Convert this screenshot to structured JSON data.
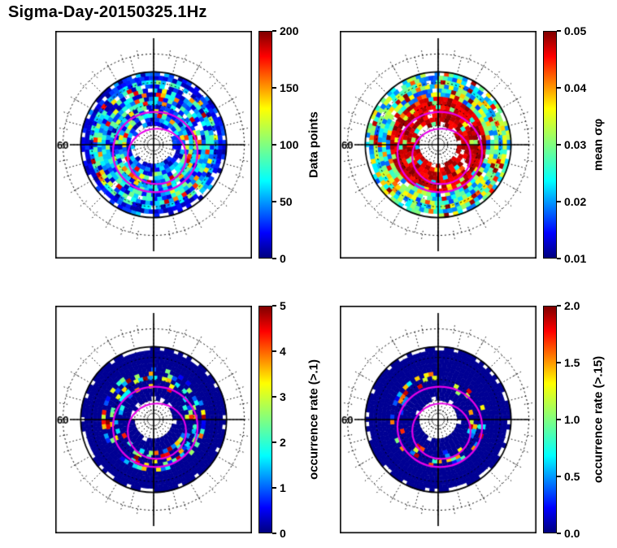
{
  "title": "Sigma-Day-20150325.1Hz",
  "chart_data": {
    "type": "heatmap",
    "subtype": "polar-dial-2x2",
    "colormap": "jet",
    "oval_color": "#e800e8",
    "grid": {
      "latitude_circle_label": "60",
      "solid_circle": "magnetic latitude 60 circle with center cross lines",
      "dotted_grid": "dotted latitude circles and 15-degree MLT spokes with short outer tick marks",
      "overlay": "two magenta auroral-oval contours per panel, offset slightly below center"
    },
    "panels": [
      {
        "id": "data-points",
        "position": "top-left",
        "colorbar_label": "Data points",
        "colorbar_min": 0,
        "colorbar_max": 200,
        "colorbar_ticks": [
          "0",
          "50",
          "100",
          "150",
          "200"
        ],
        "latitude_label": "60",
        "pattern": "full annulus of bins with mixed blue/cyan/green/yellow counts; mostly low (dark blue) at inner and outer edges; ragged white gaps at annulus boundary",
        "gen": {
          "seed": 13,
          "profile": "counts"
        }
      },
      {
        "id": "mean-sigma-phi",
        "position": "top-right",
        "colorbar_label": "mean σφ",
        "colorbar_min": 0.01,
        "colorbar_max": 0.05,
        "colorbar_ticks": [
          "0.01",
          "0.02",
          "0.03",
          "0.04",
          "0.05"
        ],
        "latitude_label": "60",
        "pattern": "dark-red high-sigma ring over the inner and middle annulus, blue/cyan/green/yellow mix toward the outer edge",
        "gen": {
          "seed": 47,
          "profile": "ring_hot"
        }
      },
      {
        "id": "occ-rate-p1",
        "position": "bottom-left",
        "colorbar_label": "occurrence rate (>.1)",
        "colorbar_min": 0,
        "colorbar_max": 5,
        "colorbar_ticks": [
          "0",
          "1",
          "2",
          "3",
          "4",
          "5"
        ],
        "latitude_label": "60",
        "pattern": "mostly near-zero (dark blue) annulus with scattered colored bins concentrated in a mid-latitude ring",
        "gen": {
          "seed": 101,
          "profile": "sparse5"
        }
      },
      {
        "id": "occ-rate-p15",
        "position": "bottom-right",
        "colorbar_label": "occurrence rate (>.15)",
        "colorbar_min": 0,
        "colorbar_max": 2,
        "colorbar_ticks": [
          "0.0",
          "0.5",
          "1.0",
          "1.5",
          "2.0"
        ],
        "latitude_label": "60",
        "pattern": "mostly near-zero (dark blue) annulus with sparse scattered colored bins in a mid-latitude ring",
        "gen": {
          "seed": 202,
          "profile": "sparse2"
        }
      }
    ]
  }
}
